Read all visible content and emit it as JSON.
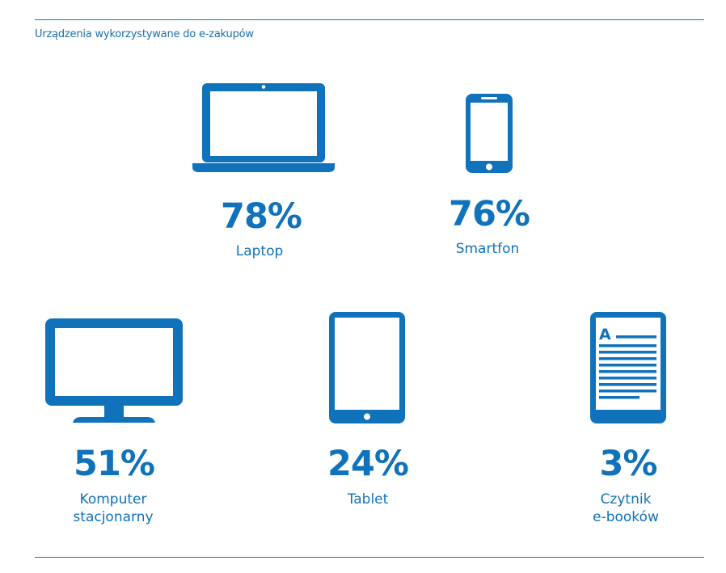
{
  "title": "Urządzenia wykorzystywane do e-zakupów",
  "accent_color": "#0f72bb",
  "chart_data": {
    "type": "table",
    "title": "Urządzenia wykorzystywane do e-zakupów",
    "unit": "%",
    "items": [
      {
        "label": "Laptop",
        "value": 78,
        "display": "78%",
        "icon": "laptop-icon"
      },
      {
        "label": "Smartfon",
        "value": 76,
        "display": "76%",
        "icon": "smartphone-icon"
      },
      {
        "label": "Komputer\nstacjonarny",
        "value": 51,
        "display": "51%",
        "icon": "desktop-monitor-icon"
      },
      {
        "label": "Tablet",
        "value": 24,
        "display": "24%",
        "icon": "tablet-icon"
      },
      {
        "label": "Czytnik\ne-booków",
        "value": 3,
        "display": "3%",
        "icon": "ebook-reader-icon"
      }
    ]
  }
}
